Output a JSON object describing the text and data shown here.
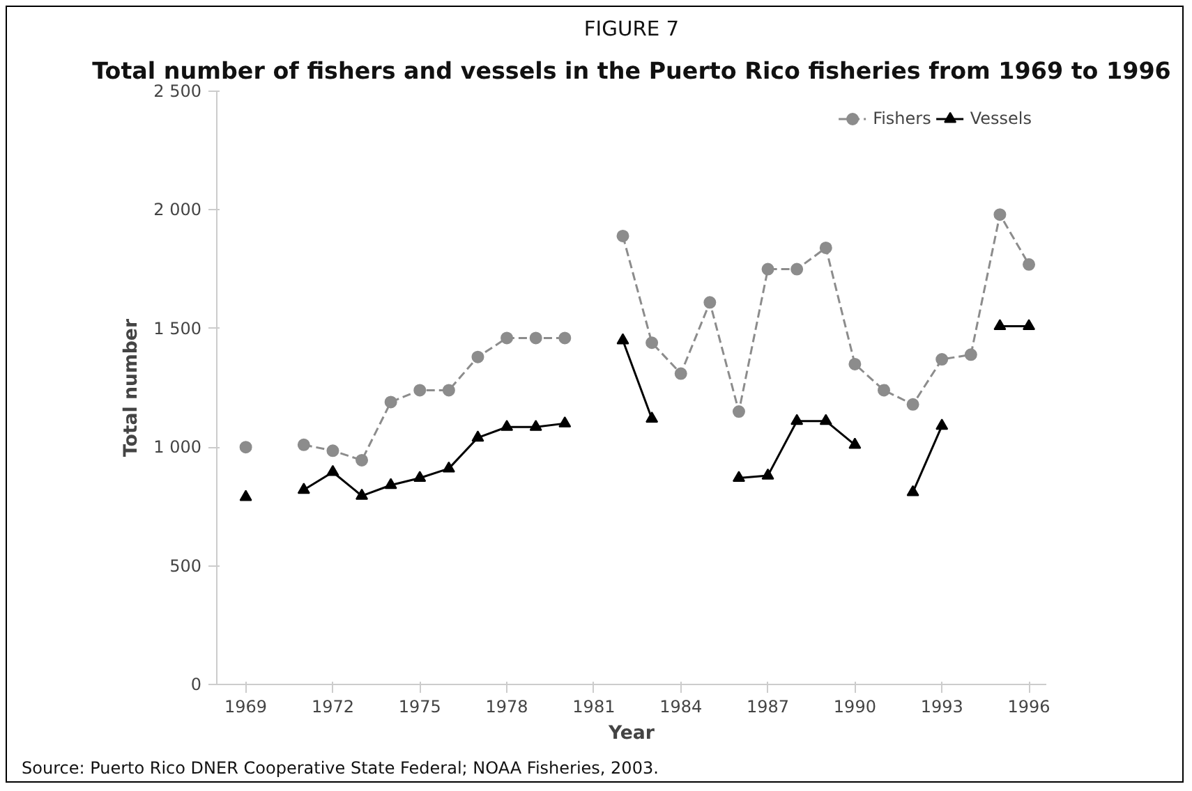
{
  "chart_data": {
    "type": "line",
    "title": "FIGURE 7",
    "subtitle": "Total number of fishers and vessels in the Puerto Rico fisheries from 1969 to 1996",
    "xlabel": "Year",
    "ylabel": "Total number",
    "x": [
      1969,
      1970,
      1971,
      1972,
      1973,
      1974,
      1975,
      1976,
      1977,
      1978,
      1979,
      1980,
      1981,
      1982,
      1983,
      1984,
      1985,
      1986,
      1987,
      1988,
      1989,
      1990,
      1991,
      1992,
      1993,
      1994,
      1995,
      1996
    ],
    "series": [
      {
        "name": "Fishers",
        "color": "#8c8c8c",
        "marker": "circle",
        "line_style": "dashed",
        "values": [
          1000,
          null,
          1010,
          985,
          945,
          1190,
          1240,
          1240,
          1380,
          1460,
          1460,
          1460,
          null,
          1890,
          1440,
          1310,
          1610,
          1150,
          1750,
          1750,
          1840,
          1350,
          1240,
          1180,
          1370,
          1390,
          1980,
          1770
        ]
      },
      {
        "name": "Vessels",
        "color": "#000000",
        "marker": "triangle",
        "line_style": "solid",
        "values": [
          790,
          null,
          820,
          895,
          795,
          840,
          870,
          910,
          1040,
          1085,
          1085,
          1100,
          null,
          1450,
          1120,
          null,
          null,
          870,
          880,
          1110,
          1110,
          1010,
          null,
          810,
          1090,
          null,
          1510,
          1510
        ]
      }
    ],
    "xlim": [
      1968,
      1996.6
    ],
    "xticks": [
      1969,
      1972,
      1975,
      1978,
      1981,
      1984,
      1987,
      1990,
      1993,
      1996
    ],
    "ylim": [
      0,
      2500
    ],
    "yticks": [
      {
        "value": 0,
        "label": "0"
      },
      {
        "value": 500,
        "label": "500"
      },
      {
        "value": 1000,
        "label": "1 000"
      },
      {
        "value": 1500,
        "label": "1 500"
      },
      {
        "value": 2000,
        "label": "2 000"
      },
      {
        "value": 2500,
        "label": "2 500"
      }
    ],
    "grid": false,
    "legend": "top right",
    "annotations": [
      "Source: Puerto Rico DNER Cooperative State Federal; NOAA Fisheries, 2003."
    ]
  }
}
